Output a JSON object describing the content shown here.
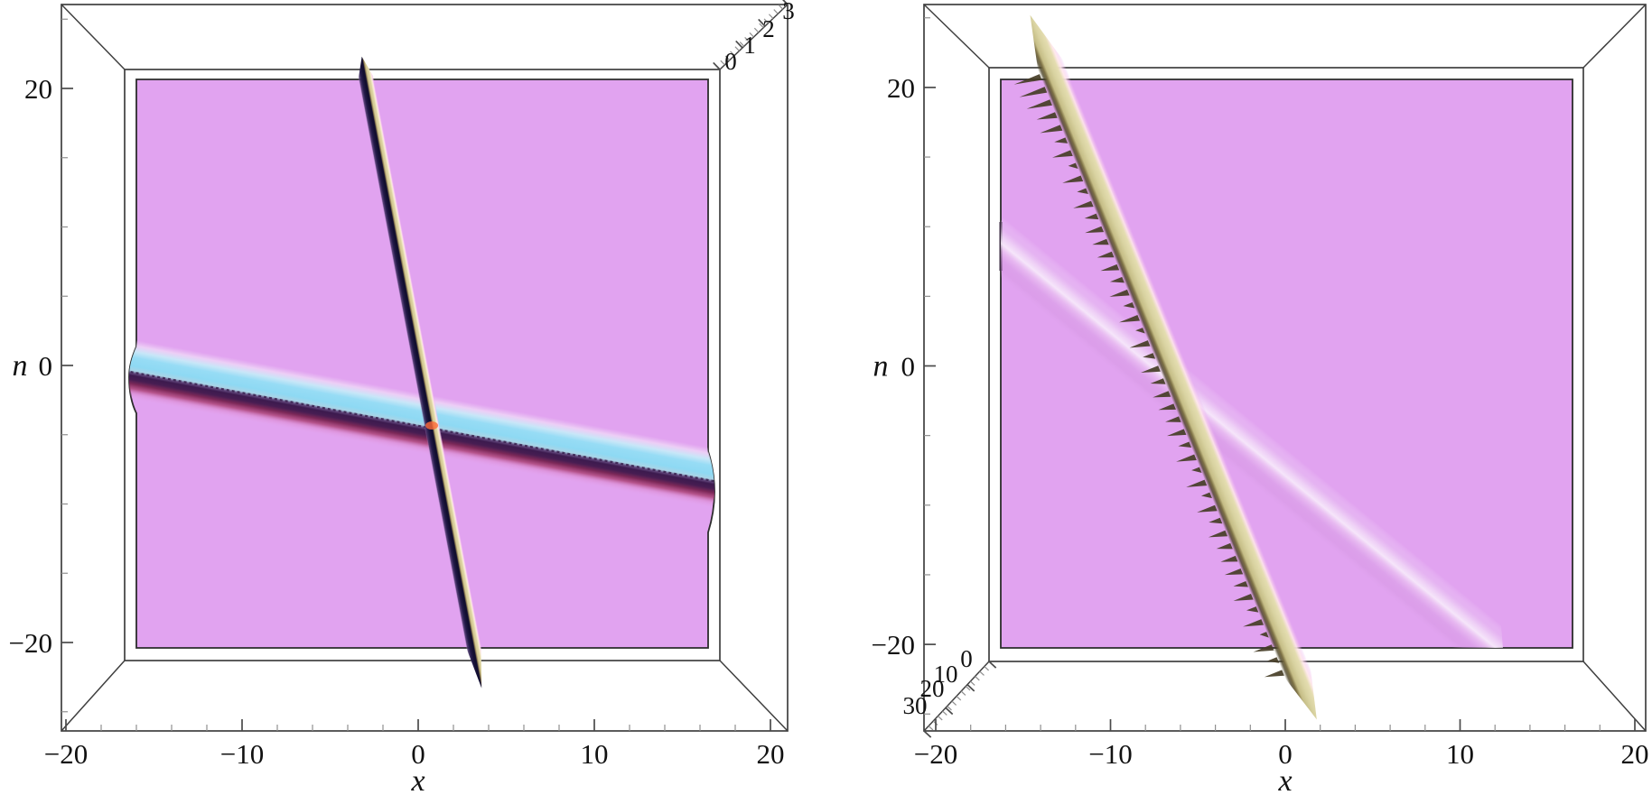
{
  "figure": {
    "panels": 2,
    "background_color": "#ffffff"
  },
  "chart_data": [
    {
      "id": "left",
      "type": "heatmap",
      "view": "3d-surface-top-view",
      "title": "",
      "xlabel": "x",
      "ylabel": "n",
      "zlabel": "",
      "x_range": [
        -20,
        20
      ],
      "y_range": [
        -20,
        20
      ],
      "z_range": [
        0,
        3
      ],
      "x_ticks": {
        "values": [
          -20,
          -10,
          0,
          10,
          20
        ],
        "labels": [
          "−20",
          "−10",
          "0",
          "10",
          "20"
        ],
        "minor_step": 2
      },
      "y_ticks": {
        "values": [
          20,
          0,
          -20
        ],
        "labels": [
          "20",
          "0",
          "−20"
        ],
        "minor_step": 5
      },
      "z_ticks": {
        "values": [
          0,
          1,
          2,
          3
        ],
        "labels": [
          "0",
          "1",
          "2",
          "3"
        ]
      },
      "grid": false,
      "legend": null,
      "surface_color": "#e1a3f0",
      "crossing_glow_color": "#ff6a3a",
      "solitons": [
        {
          "name": "shallow-cyan-dark-soliton",
          "track_xn": [
            [
              -16.6,
              -0.2
            ],
            [
              17.0,
              -8.2
            ]
          ],
          "width_units": 4.3,
          "gradient_stops": [
            [
              0.0,
              "#e7a4ea",
              0
            ],
            [
              0.1,
              "#d883c6",
              0.45
            ],
            [
              0.18,
              "#b04a80",
              0.9
            ],
            [
              0.26,
              "#7c2858",
              1
            ],
            [
              0.33,
              "#471d52",
              1
            ],
            [
              0.4,
              "#3c1a4e",
              1
            ],
            [
              0.44,
              "#64487e",
              1
            ],
            [
              0.48,
              "#a9d4e6",
              1
            ],
            [
              0.56,
              "#8ed9f3",
              1
            ],
            [
              0.7,
              "#97dcf5",
              1
            ],
            [
              0.8,
              "#c6eaf8",
              0.95
            ],
            [
              0.9,
              "#efd9f7",
              0.8
            ],
            [
              1.0,
              "#eccdf4",
              0
            ]
          ]
        },
        {
          "name": "steep-dark-tan-soliton",
          "track_xn": [
            [
              -3.2,
              22.3
            ],
            [
              3.6,
              -23.3
            ]
          ],
          "width_units": 0.9,
          "gradient_stops": [
            [
              0.0,
              "#c9a2ea",
              0
            ],
            [
              0.08,
              "#463366",
              0.85
            ],
            [
              0.22,
              "#241b4a",
              1
            ],
            [
              0.4,
              "#120e30",
              1
            ],
            [
              0.5,
              "#120e30",
              1
            ],
            [
              0.56,
              "#8a7850",
              1
            ],
            [
              0.64,
              "#d2c892",
              1
            ],
            [
              0.76,
              "#ddd4a2",
              1
            ],
            [
              0.84,
              "#f4ecca",
              1
            ],
            [
              0.9,
              "#ffe3ec",
              0.95
            ],
            [
              0.96,
              "#f2b9ee",
              0.55
            ],
            [
              1.0,
              "#e3a5f0",
              0
            ]
          ]
        }
      ]
    },
    {
      "id": "right",
      "type": "heatmap",
      "view": "3d-surface-top-view",
      "title": "",
      "xlabel": "x",
      "ylabel": "n",
      "zlabel": "",
      "x_range": [
        -20,
        20
      ],
      "y_range": [
        -20,
        20
      ],
      "z_range": [
        0,
        30
      ],
      "x_ticks": {
        "values": [
          -20,
          -10,
          0,
          10,
          20
        ],
        "labels": [
          "−20",
          "−10",
          "0",
          "10",
          "20"
        ],
        "minor_step": 2
      },
      "y_ticks": {
        "values": [
          20,
          0,
          -20
        ],
        "labels": [
          "20",
          "0",
          "−20"
        ],
        "minor_step": 5
      },
      "z_ticks": {
        "values": [
          0,
          10,
          20,
          30
        ],
        "labels": [
          "0",
          "10",
          "20",
          "30"
        ]
      },
      "grid": false,
      "legend": null,
      "surface_color": "#e1a3f0",
      "solitons": [
        {
          "name": "faint-white-soliton",
          "track_xn": [
            [
              -17.0,
              9.3
            ],
            [
              12.5,
              -21.0
            ]
          ],
          "width_units": 3.5,
          "gradient_stops": [
            [
              0.0,
              "#d9a0e6",
              0
            ],
            [
              0.14,
              "#d193de",
              0.35
            ],
            [
              0.3,
              "#d9a0e6",
              0.5
            ],
            [
              0.44,
              "#ecc8f2",
              0.6
            ],
            [
              0.56,
              "#f8edfb",
              0.9
            ],
            [
              0.68,
              "#f5e6f9",
              0.65
            ],
            [
              0.82,
              "#ecd0f4",
              0.35
            ],
            [
              1.0,
              "#ffffff",
              0
            ]
          ]
        },
        {
          "name": "tan-spiky-soliton",
          "track_xn": [
            [
              -14.6,
              25.2
            ],
            [
              1.8,
              -25.4
            ]
          ],
          "width_units": 1.6,
          "spike_color": "#453d26",
          "gradient_stops": [
            [
              0.0,
              "#5a512f",
              0
            ],
            [
              0.1,
              "#4a4226",
              0.8
            ],
            [
              0.2,
              "#7c7044",
              1
            ],
            [
              0.3,
              "#c5bd86",
              1
            ],
            [
              0.5,
              "#d8d2a0",
              1
            ],
            [
              0.7,
              "#e4ddb0",
              1
            ],
            [
              0.82,
              "#ffe7ea",
              0.9
            ],
            [
              0.92,
              "#f5c8ef",
              0.45
            ],
            [
              1.0,
              "#e2a5f0",
              0
            ]
          ]
        }
      ]
    }
  ]
}
